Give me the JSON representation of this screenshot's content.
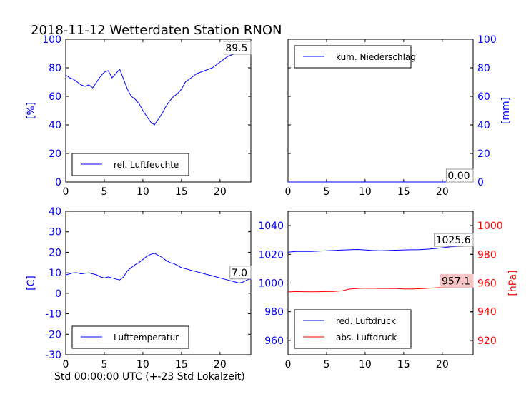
{
  "figure_title": "2018-11-12 Wetterdaten Station RNON",
  "footer_xlabel": "Std 00:00:00 UTC (+-23 Std Lokalzeit)",
  "colors": {
    "blue": "#0000ff",
    "red": "#ff0000",
    "black": "#000000"
  },
  "chart_data": [
    {
      "type": "line",
      "panel": "top-left",
      "ylabel": "[%]",
      "ylabel_color": "#0000ff",
      "xlim": [
        0,
        24
      ],
      "ylim": [
        0,
        100
      ],
      "xticks": [
        0,
        5,
        10,
        15,
        20
      ],
      "yticks": [
        0,
        20,
        40,
        60,
        80,
        100
      ],
      "grid": false,
      "legend_position": "lower-center",
      "last_value_label": "89.5",
      "series": [
        {
          "name": "rel. Luftfeuchte",
          "color": "#0000ff",
          "x": [
            0,
            0.5,
            1,
            1.5,
            2,
            2.5,
            3,
            3.5,
            4,
            4.5,
            5,
            5.5,
            6,
            6.5,
            7,
            7.5,
            8,
            8.5,
            9,
            9.5,
            10,
            10.5,
            11,
            11.5,
            12,
            12.5,
            13,
            13.5,
            14,
            14.5,
            15,
            15.5,
            16,
            16.5,
            17,
            17.5,
            18,
            18.5,
            19,
            19.5,
            20,
            20.5,
            21,
            21.5,
            22,
            22.5,
            23,
            23.5,
            24
          ],
          "y": [
            75,
            73,
            72,
            70,
            68,
            67,
            68,
            66,
            70,
            74,
            77,
            78,
            73,
            76,
            79,
            72,
            65,
            60,
            58,
            55,
            50,
            46,
            42,
            40,
            44,
            48,
            53,
            57,
            60,
            62,
            65,
            70,
            72,
            74,
            76,
            77,
            78,
            79,
            80,
            82,
            84,
            86,
            88,
            89,
            90,
            91,
            91,
            90,
            89.5
          ]
        }
      ]
    },
    {
      "type": "line",
      "panel": "top-right",
      "ylabel": "[mm]",
      "ylabel_color": "#0000ff",
      "yaxis_side": "right",
      "xlim": [
        0,
        24
      ],
      "ylim": [
        0,
        100
      ],
      "xticks": [
        0,
        5,
        10,
        15,
        20
      ],
      "yticks": [
        0,
        20,
        40,
        60,
        80,
        100
      ],
      "grid": false,
      "legend_position": "upper-left",
      "last_value_label": "0.00",
      "series": [
        {
          "name": "kum. Niederschlag",
          "color": "#0000ff",
          "x": [
            0,
            24
          ],
          "y": [
            0,
            0
          ]
        }
      ]
    },
    {
      "type": "line",
      "panel": "bottom-left",
      "ylabel": "[C]",
      "ylabel_color": "#0000ff",
      "xlim": [
        0,
        24
      ],
      "ylim": [
        -30,
        40
      ],
      "xticks": [
        0,
        5,
        10,
        15,
        20
      ],
      "yticks": [
        -30,
        -20,
        -10,
        0,
        10,
        20,
        30,
        40
      ],
      "grid": false,
      "legend_position": "lower-center",
      "last_value_label": "7.0",
      "series": [
        {
          "name": "Lufttemperatur",
          "color": "#0000ff",
          "x": [
            0,
            0.5,
            1,
            1.5,
            2,
            2.5,
            3,
            3.5,
            4,
            4.5,
            5,
            5.5,
            6,
            6.5,
            7,
            7.5,
            8,
            8.5,
            9,
            9.5,
            10,
            10.5,
            11,
            11.5,
            12,
            12.5,
            13,
            13.5,
            14,
            14.5,
            15,
            15.5,
            16,
            16.5,
            17,
            17.5,
            18,
            18.5,
            19,
            19.5,
            20,
            20.5,
            21,
            21.5,
            22,
            22.5,
            23,
            23.5,
            24
          ],
          "y": [
            9,
            9.5,
            10,
            10,
            9.5,
            9.8,
            10,
            9.5,
            9,
            8,
            7.5,
            8,
            7.5,
            7,
            6.5,
            8,
            11,
            12.5,
            14,
            15,
            16.5,
            18,
            19,
            19.5,
            18.5,
            17.5,
            16,
            15,
            14.5,
            13.5,
            12.5,
            12,
            11.5,
            11,
            10.5,
            10,
            9.5,
            9,
            8.5,
            8,
            7.5,
            7,
            6.5,
            6,
            5.5,
            5,
            5.5,
            6.5,
            7
          ]
        }
      ]
    },
    {
      "type": "line",
      "panel": "bottom-right",
      "xlim": [
        0,
        24
      ],
      "ylim": [
        950,
        1050
      ],
      "yticks": [
        960,
        980,
        1000,
        1020,
        1040
      ],
      "y2lim": [
        910,
        1010
      ],
      "y2ticks": [
        920,
        940,
        960,
        980,
        1000
      ],
      "y2label": "[hPa]",
      "y2label_color": "#ff0000",
      "xticks": [
        0,
        5,
        10,
        15,
        20
      ],
      "grid": false,
      "legend_position": "lower-left",
      "series": [
        {
          "name": "red. Luftdruck",
          "color": "#0000ff",
          "axis": "left",
          "last_value_label": "1025.6",
          "x": [
            0,
            1,
            2,
            3,
            4,
            5,
            6,
            7,
            8,
            9,
            10,
            11,
            12,
            13,
            14,
            15,
            16,
            17,
            18,
            19,
            20,
            21,
            22,
            23,
            24
          ],
          "y": [
            1021.5,
            1022,
            1022,
            1022,
            1022.3,
            1022.5,
            1022.7,
            1023,
            1023.2,
            1023.4,
            1023.1,
            1022.7,
            1022.5,
            1022.7,
            1022.9,
            1023.1,
            1023.2,
            1023.3,
            1023.6,
            1024,
            1024.6,
            1025.2,
            1025.5,
            1025.6,
            1025.6
          ]
        },
        {
          "name": "abs. Luftdruck",
          "color": "#ff0000",
          "axis": "right",
          "last_value_label": "957.1",
          "x": [
            0,
            1,
            2,
            3,
            4,
            5,
            6,
            7,
            8,
            9,
            10,
            11,
            12,
            13,
            14,
            15,
            16,
            17,
            18,
            19,
            20,
            21,
            22,
            23,
            24
          ],
          "y": [
            953.8,
            954.1,
            954,
            953.9,
            954,
            954.1,
            954.2,
            954.6,
            955.8,
            956.2,
            956.3,
            956.3,
            956.2,
            956.2,
            956.1,
            955.9,
            955.8,
            956,
            956.3,
            956.6,
            956.9,
            957,
            957.1,
            957.1,
            957.1
          ]
        }
      ]
    }
  ]
}
